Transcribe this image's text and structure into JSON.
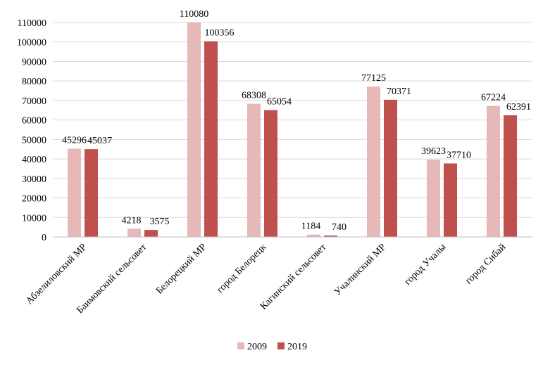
{
  "chart_data": {
    "type": "bar",
    "categories": [
      "Абзелиловский МР",
      "Баимовский сельсовет",
      "Белорецкий МР",
      "город Белорецк",
      "Кагинский сельсовет",
      "Учалинский МР",
      "город Учалы",
      "город Сибай"
    ],
    "series": [
      {
        "name": "2009",
        "values": [
          45296,
          4218,
          110080,
          68308,
          1184,
          77125,
          39623,
          67224
        ],
        "color": "#e6b8b7"
      },
      {
        "name": "2019",
        "values": [
          45037,
          3575,
          100356,
          65054,
          740,
          70371,
          37710,
          62391
        ],
        "color": "#c0504d"
      }
    ],
    "yticks": [
      "0",
      "10000",
      "20000",
      "30000",
      "40000",
      "50000",
      "60000",
      "70000",
      "80000",
      "90000",
      "100000",
      "110000"
    ],
    "data_labels": [
      [
        "45296",
        "4218",
        "110080",
        "68308",
        "1184",
        "77125",
        "39623",
        "67224"
      ],
      [
        "45037",
        "3575",
        "100356",
        "65054",
        "740",
        "70371",
        "37710",
        "62391"
      ]
    ],
    "ylim": [
      0,
      110000
    ],
    "grid": true,
    "legend_position": "bottom"
  }
}
